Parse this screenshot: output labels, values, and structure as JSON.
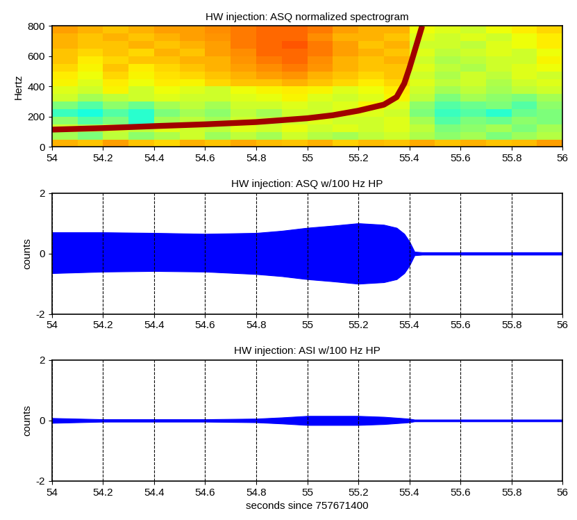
{
  "chart_data": [
    {
      "type": "heatmap",
      "title": "HW injection: ASQ normalized spectrogram",
      "y_label": "Hertz",
      "xlim": [
        54,
        56
      ],
      "xticks": [
        54,
        54.2,
        54.4,
        54.6,
        54.8,
        55,
        55.2,
        55.4,
        55.6,
        55.8,
        56
      ],
      "ylim": [
        0,
        800
      ],
      "yticks": [
        0,
        200,
        400,
        600,
        800
      ],
      "x_bins": [
        54,
        54.1,
        54.2,
        54.3,
        54.4,
        54.5,
        54.6,
        54.7,
        54.8,
        54.9,
        55,
        55.1,
        55.2,
        55.3,
        55.4,
        55.5,
        55.6,
        55.7,
        55.8,
        55.9,
        56
      ],
      "y_bins": [
        0,
        50,
        100,
        150,
        200,
        250,
        300,
        350,
        400,
        450,
        500,
        550,
        600,
        650,
        700,
        750,
        800
      ],
      "clim": [
        0,
        1
      ],
      "cells": [
        [
          0.72,
          0.7,
          0.74,
          0.7,
          0.68,
          0.72,
          0.7,
          0.73,
          0.71,
          0.7,
          0.72,
          0.69,
          0.71,
          0.7,
          0.73,
          0.7,
          0.72,
          0.7,
          0.71,
          0.74
        ],
        [
          0.55,
          0.5,
          0.58,
          0.52,
          0.56,
          0.6,
          0.54,
          0.58,
          0.55,
          0.6,
          0.57,
          0.55,
          0.58,
          0.6,
          0.56,
          0.52,
          0.55,
          0.5,
          0.54,
          0.57
        ],
        [
          0.6,
          0.56,
          0.6,
          0.58,
          0.62,
          0.6,
          0.58,
          0.62,
          0.6,
          0.63,
          0.6,
          0.62,
          0.6,
          0.62,
          0.58,
          0.5,
          0.52,
          0.55,
          0.5,
          0.55
        ],
        [
          0.52,
          0.45,
          0.5,
          0.4,
          0.55,
          0.58,
          0.55,
          0.6,
          0.58,
          0.6,
          0.62,
          0.6,
          0.6,
          0.62,
          0.55,
          0.45,
          0.5,
          0.48,
          0.52,
          0.5
        ],
        [
          0.42,
          0.38,
          0.45,
          0.4,
          0.5,
          0.55,
          0.52,
          0.58,
          0.55,
          0.6,
          0.6,
          0.62,
          0.62,
          0.6,
          0.5,
          0.42,
          0.45,
          0.4,
          0.48,
          0.5
        ],
        [
          0.5,
          0.45,
          0.52,
          0.48,
          0.55,
          0.58,
          0.55,
          0.6,
          0.6,
          0.62,
          0.6,
          0.62,
          0.65,
          0.62,
          0.52,
          0.45,
          0.48,
          0.5,
          0.45,
          0.52
        ],
        [
          0.6,
          0.55,
          0.58,
          0.6,
          0.62,
          0.6,
          0.6,
          0.62,
          0.63,
          0.65,
          0.62,
          0.6,
          0.62,
          0.65,
          0.58,
          0.5,
          0.55,
          0.52,
          0.5,
          0.55
        ],
        [
          0.62,
          0.6,
          0.65,
          0.6,
          0.64,
          0.62,
          0.6,
          0.64,
          0.65,
          0.66,
          0.65,
          0.62,
          0.64,
          0.66,
          0.6,
          0.55,
          0.58,
          0.55,
          0.58,
          0.6
        ],
        [
          0.65,
          0.62,
          0.66,
          0.64,
          0.66,
          0.65,
          0.68,
          0.7,
          0.7,
          0.72,
          0.7,
          0.68,
          0.66,
          0.68,
          0.62,
          0.58,
          0.6,
          0.56,
          0.6,
          0.62
        ],
        [
          0.66,
          0.64,
          0.68,
          0.65,
          0.67,
          0.68,
          0.7,
          0.72,
          0.74,
          0.75,
          0.72,
          0.7,
          0.68,
          0.7,
          0.6,
          0.56,
          0.6,
          0.58,
          0.62,
          0.6
        ],
        [
          0.68,
          0.65,
          0.7,
          0.66,
          0.68,
          0.7,
          0.72,
          0.74,
          0.76,
          0.78,
          0.75,
          0.72,
          0.7,
          0.7,
          0.62,
          0.58,
          0.56,
          0.6,
          0.62,
          0.64
        ],
        [
          0.7,
          0.66,
          0.68,
          0.7,
          0.7,
          0.72,
          0.72,
          0.75,
          0.78,
          0.8,
          0.76,
          0.72,
          0.7,
          0.72,
          0.6,
          0.56,
          0.58,
          0.6,
          0.6,
          0.65
        ],
        [
          0.7,
          0.68,
          0.7,
          0.68,
          0.72,
          0.7,
          0.74,
          0.76,
          0.8,
          0.8,
          0.78,
          0.74,
          0.72,
          0.7,
          0.62,
          0.58,
          0.6,
          0.62,
          0.6,
          0.64
        ],
        [
          0.72,
          0.7,
          0.7,
          0.72,
          0.7,
          0.72,
          0.74,
          0.78,
          0.8,
          0.82,
          0.78,
          0.74,
          0.7,
          0.72,
          0.6,
          0.6,
          0.58,
          0.62,
          0.64,
          0.66
        ],
        [
          0.72,
          0.7,
          0.72,
          0.7,
          0.72,
          0.74,
          0.75,
          0.78,
          0.8,
          0.8,
          0.76,
          0.72,
          0.72,
          0.7,
          0.62,
          0.6,
          0.62,
          0.6,
          0.64,
          0.66
        ],
        [
          0.74,
          0.72,
          0.7,
          0.72,
          0.74,
          0.74,
          0.76,
          0.78,
          0.8,
          0.8,
          0.78,
          0.74,
          0.72,
          0.72,
          0.64,
          0.62,
          0.6,
          0.64,
          0.66,
          0.68
        ]
      ],
      "track": {
        "color": "#a00000",
        "x": [
          54,
          54.2,
          54.4,
          54.6,
          54.8,
          55,
          55.1,
          55.2,
          55.3,
          55.35,
          55.38,
          55.4,
          55.45
        ],
        "y": [
          115,
          125,
          138,
          150,
          165,
          190,
          210,
          240,
          280,
          330,
          420,
          520,
          800
        ]
      }
    },
    {
      "type": "area",
      "title": "HW injection: ASQ w/100 Hz HP",
      "y_label": "counts",
      "color": "#0000ff",
      "grid": "x",
      "xlim": [
        54,
        56
      ],
      "xticks": [
        54,
        54.2,
        54.4,
        54.6,
        54.8,
        55,
        55.2,
        55.4,
        55.6,
        55.8,
        56
      ],
      "ylim": [
        -2,
        2
      ],
      "yticks": [
        -2,
        0,
        2
      ],
      "x": [
        54,
        54.2,
        54.4,
        54.6,
        54.8,
        54.9,
        55,
        55.1,
        55.2,
        55.3,
        55.35,
        55.38,
        55.4,
        55.42,
        55.45,
        55.6,
        55.8,
        56
      ],
      "upper": [
        0.7,
        0.7,
        0.68,
        0.65,
        0.68,
        0.75,
        0.85,
        0.92,
        1.0,
        0.95,
        0.85,
        0.65,
        0.4,
        0.06,
        0.04,
        0.04,
        0.04,
        0.04
      ],
      "lower": [
        -0.65,
        -0.6,
        -0.58,
        -0.6,
        -0.68,
        -0.75,
        -0.85,
        -0.92,
        -1.0,
        -0.95,
        -0.85,
        -0.65,
        -0.4,
        -0.06,
        -0.04,
        -0.04,
        -0.04,
        -0.04
      ]
    },
    {
      "type": "area",
      "title": "HW injection: ASI w/100 Hz HP",
      "y_label": "counts",
      "x_label": "seconds since 757671400",
      "color": "#0000ff",
      "grid": "x",
      "xlim": [
        54,
        56
      ],
      "xticks": [
        54,
        54.2,
        54.4,
        54.6,
        54.8,
        55,
        55.2,
        55.4,
        55.6,
        55.8,
        56
      ],
      "ylim": [
        -2,
        2
      ],
      "yticks": [
        -2,
        0,
        2
      ],
      "x": [
        54,
        54.1,
        54.2,
        54.4,
        54.6,
        54.8,
        54.9,
        55,
        55.2,
        55.3,
        55.4,
        55.42,
        55.6,
        56
      ],
      "upper": [
        0.08,
        0.06,
        0.04,
        0.04,
        0.04,
        0.06,
        0.1,
        0.15,
        0.15,
        0.12,
        0.06,
        0.03,
        0.03,
        0.03
      ],
      "lower": [
        -0.08,
        -0.06,
        -0.04,
        -0.04,
        -0.04,
        -0.06,
        -0.1,
        -0.15,
        -0.15,
        -0.12,
        -0.06,
        -0.03,
        -0.03,
        -0.03
      ]
    }
  ]
}
